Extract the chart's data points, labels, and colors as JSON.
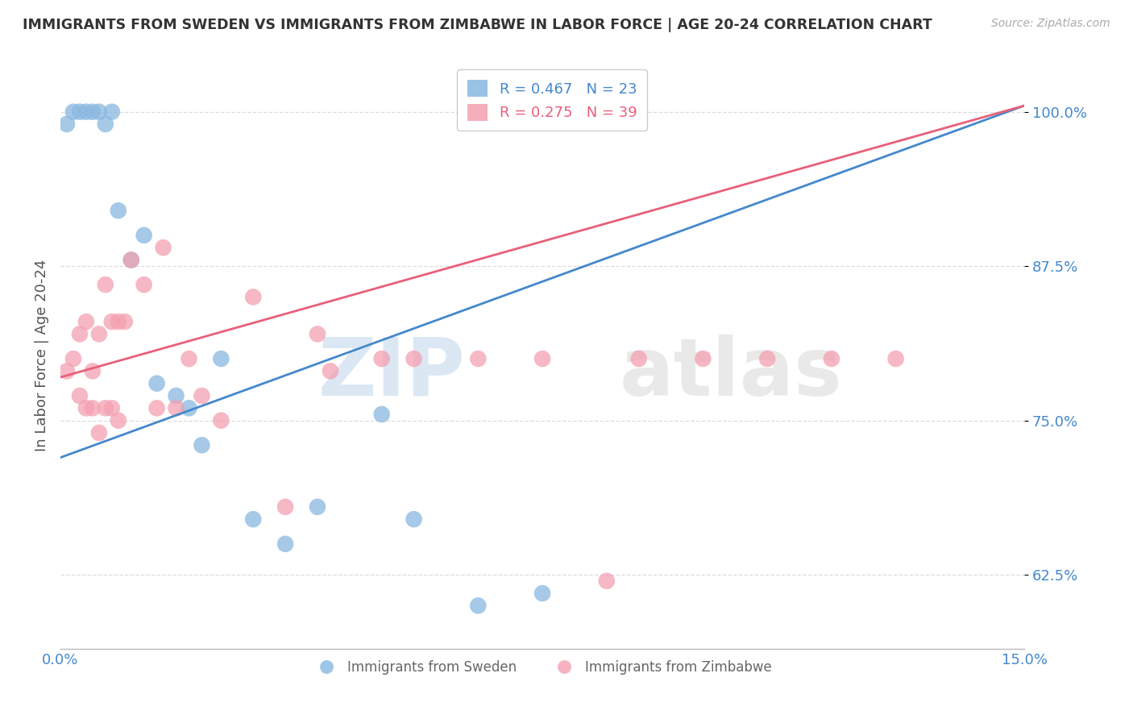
{
  "title": "IMMIGRANTS FROM SWEDEN VS IMMIGRANTS FROM ZIMBABWE IN LABOR FORCE | AGE 20-24 CORRELATION CHART",
  "source": "Source: ZipAtlas.com",
  "ylabel": "In Labor Force | Age 20-24",
  "xmin": 0.0,
  "xmax": 0.15,
  "ymin": 0.565,
  "ymax": 1.04,
  "yticks": [
    0.625,
    0.75,
    0.875,
    1.0
  ],
  "ytick_labels": [
    "62.5%",
    "75.0%",
    "87.5%",
    "100.0%"
  ],
  "sweden_color": "#89b8e0",
  "zimbabwe_color": "#f4a0b0",
  "sweden_line_color": "#4488cc",
  "zimbabwe_line_color": "#e8607a",
  "sweden_R": 0.467,
  "sweden_N": 23,
  "zimbabwe_R": 0.275,
  "zimbabwe_N": 39,
  "sweden_x": [
    0.001,
    0.002,
    0.003,
    0.004,
    0.005,
    0.006,
    0.007,
    0.008,
    0.009,
    0.011,
    0.013,
    0.015,
    0.018,
    0.02,
    0.022,
    0.025,
    0.03,
    0.035,
    0.04,
    0.05,
    0.055,
    0.065,
    0.075
  ],
  "sweden_y": [
    0.99,
    1.0,
    1.0,
    1.0,
    1.0,
    1.0,
    0.99,
    1.0,
    0.92,
    0.88,
    0.9,
    0.78,
    0.77,
    0.76,
    0.73,
    0.8,
    0.67,
    0.65,
    0.68,
    0.755,
    0.67,
    0.6,
    0.61
  ],
  "zimbabwe_x": [
    0.001,
    0.002,
    0.003,
    0.003,
    0.004,
    0.004,
    0.005,
    0.005,
    0.006,
    0.006,
    0.007,
    0.007,
    0.008,
    0.008,
    0.009,
    0.009,
    0.01,
    0.011,
    0.013,
    0.015,
    0.016,
    0.018,
    0.02,
    0.022,
    0.025,
    0.03,
    0.035,
    0.04,
    0.042,
    0.05,
    0.055,
    0.065,
    0.075,
    0.085,
    0.09,
    0.1,
    0.11,
    0.12,
    0.13
  ],
  "zimbabwe_y": [
    0.79,
    0.8,
    0.77,
    0.82,
    0.76,
    0.83,
    0.79,
    0.76,
    0.74,
    0.82,
    0.76,
    0.86,
    0.76,
    0.83,
    0.83,
    0.75,
    0.83,
    0.88,
    0.86,
    0.76,
    0.89,
    0.76,
    0.8,
    0.77,
    0.75,
    0.85,
    0.68,
    0.82,
    0.79,
    0.8,
    0.8,
    0.8,
    0.8,
    0.62,
    0.8,
    0.8,
    0.8,
    0.8,
    0.8
  ],
  "watermark_zip": "ZIP",
  "watermark_atlas": "atlas",
  "background_color": "#ffffff",
  "grid_color": "#dddddd"
}
